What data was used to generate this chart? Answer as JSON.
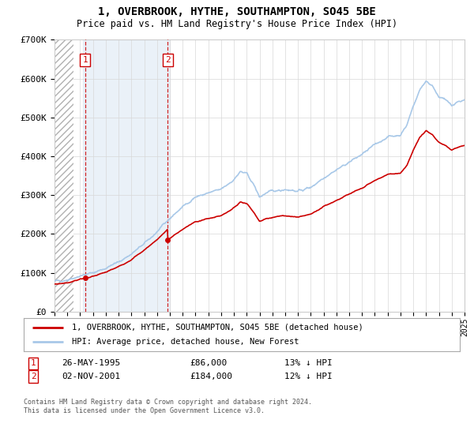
{
  "title": "1, OVERBROOK, HYTHE, SOUTHAMPTON, SO45 5BE",
  "subtitle": "Price paid vs. HM Land Registry's House Price Index (HPI)",
  "x_start_year": 1993,
  "x_end_year": 2025,
  "y_min": 0,
  "y_max": 700000,
  "y_ticks": [
    0,
    100000,
    200000,
    300000,
    400000,
    500000,
    600000,
    700000
  ],
  "y_tick_labels": [
    "£0",
    "£100K",
    "£200K",
    "£300K",
    "£400K",
    "£500K",
    "£600K",
    "£700K"
  ],
  "sale1_year": 1995.38,
  "sale1_price": 86000,
  "sale1_label": "1",
  "sale1_date": "26-MAY-1995",
  "sale1_price_str": "£86,000",
  "sale1_note": "13% ↓ HPI",
  "sale2_year": 2001.84,
  "sale2_price": 184000,
  "sale2_label": "2",
  "sale2_date": "02-NOV-2001",
  "sale2_price_str": "£184,000",
  "sale2_note": "12% ↓ HPI",
  "hpi_line_color": "#a8c8e8",
  "price_line_color": "#cc0000",
  "sale_marker_color": "#cc0000",
  "hatch_color": "#c8c8c8",
  "span1_color": "#dde8f4",
  "legend_label1": "1, OVERBROOK, HYTHE, SOUTHAMPTON, SO45 5BE (detached house)",
  "legend_label2": "HPI: Average price, detached house, New Forest",
  "footer": "Contains HM Land Registry data © Crown copyright and database right 2024.\nThis data is licensed under the Open Government Licence v3.0."
}
